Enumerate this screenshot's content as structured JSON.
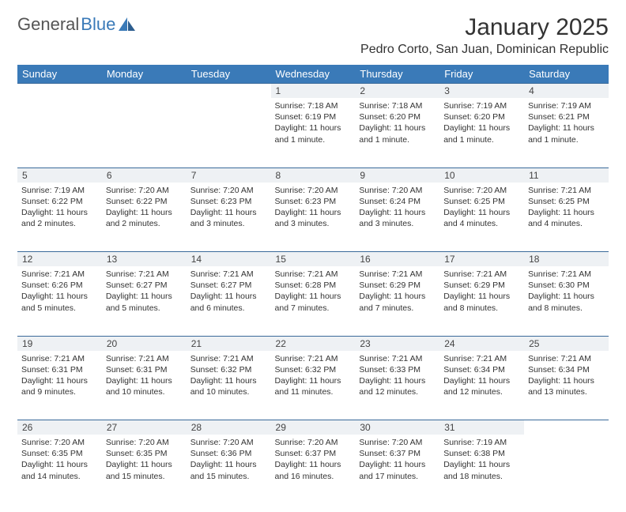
{
  "brand": {
    "part1": "General",
    "part2": "Blue"
  },
  "title": "January 2025",
  "location": "Pedro Corto, San Juan, Dominican Republic",
  "colors": {
    "header_bg": "#3a7ab8",
    "header_text": "#ffffff",
    "daynum_bg": "#eef1f4",
    "border": "#3a6a9a",
    "text": "#333333",
    "brand_gray": "#555555",
    "brand_blue": "#3a7ab8"
  },
  "weekdays": [
    "Sunday",
    "Monday",
    "Tuesday",
    "Wednesday",
    "Thursday",
    "Friday",
    "Saturday"
  ],
  "weeks": [
    {
      "nums": [
        "",
        "",
        "",
        "1",
        "2",
        "3",
        "4"
      ],
      "cells": [
        null,
        null,
        null,
        {
          "sunrise": "Sunrise: 7:18 AM",
          "sunset": "Sunset: 6:19 PM",
          "day1": "Daylight: 11 hours",
          "day2": "and 1 minute."
        },
        {
          "sunrise": "Sunrise: 7:18 AM",
          "sunset": "Sunset: 6:20 PM",
          "day1": "Daylight: 11 hours",
          "day2": "and 1 minute."
        },
        {
          "sunrise": "Sunrise: 7:19 AM",
          "sunset": "Sunset: 6:20 PM",
          "day1": "Daylight: 11 hours",
          "day2": "and 1 minute."
        },
        {
          "sunrise": "Sunrise: 7:19 AM",
          "sunset": "Sunset: 6:21 PM",
          "day1": "Daylight: 11 hours",
          "day2": "and 1 minute."
        }
      ]
    },
    {
      "nums": [
        "5",
        "6",
        "7",
        "8",
        "9",
        "10",
        "11"
      ],
      "cells": [
        {
          "sunrise": "Sunrise: 7:19 AM",
          "sunset": "Sunset: 6:22 PM",
          "day1": "Daylight: 11 hours",
          "day2": "and 2 minutes."
        },
        {
          "sunrise": "Sunrise: 7:20 AM",
          "sunset": "Sunset: 6:22 PM",
          "day1": "Daylight: 11 hours",
          "day2": "and 2 minutes."
        },
        {
          "sunrise": "Sunrise: 7:20 AM",
          "sunset": "Sunset: 6:23 PM",
          "day1": "Daylight: 11 hours",
          "day2": "and 3 minutes."
        },
        {
          "sunrise": "Sunrise: 7:20 AM",
          "sunset": "Sunset: 6:23 PM",
          "day1": "Daylight: 11 hours",
          "day2": "and 3 minutes."
        },
        {
          "sunrise": "Sunrise: 7:20 AM",
          "sunset": "Sunset: 6:24 PM",
          "day1": "Daylight: 11 hours",
          "day2": "and 3 minutes."
        },
        {
          "sunrise": "Sunrise: 7:20 AM",
          "sunset": "Sunset: 6:25 PM",
          "day1": "Daylight: 11 hours",
          "day2": "and 4 minutes."
        },
        {
          "sunrise": "Sunrise: 7:21 AM",
          "sunset": "Sunset: 6:25 PM",
          "day1": "Daylight: 11 hours",
          "day2": "and 4 minutes."
        }
      ]
    },
    {
      "nums": [
        "12",
        "13",
        "14",
        "15",
        "16",
        "17",
        "18"
      ],
      "cells": [
        {
          "sunrise": "Sunrise: 7:21 AM",
          "sunset": "Sunset: 6:26 PM",
          "day1": "Daylight: 11 hours",
          "day2": "and 5 minutes."
        },
        {
          "sunrise": "Sunrise: 7:21 AM",
          "sunset": "Sunset: 6:27 PM",
          "day1": "Daylight: 11 hours",
          "day2": "and 5 minutes."
        },
        {
          "sunrise": "Sunrise: 7:21 AM",
          "sunset": "Sunset: 6:27 PM",
          "day1": "Daylight: 11 hours",
          "day2": "and 6 minutes."
        },
        {
          "sunrise": "Sunrise: 7:21 AM",
          "sunset": "Sunset: 6:28 PM",
          "day1": "Daylight: 11 hours",
          "day2": "and 7 minutes."
        },
        {
          "sunrise": "Sunrise: 7:21 AM",
          "sunset": "Sunset: 6:29 PM",
          "day1": "Daylight: 11 hours",
          "day2": "and 7 minutes."
        },
        {
          "sunrise": "Sunrise: 7:21 AM",
          "sunset": "Sunset: 6:29 PM",
          "day1": "Daylight: 11 hours",
          "day2": "and 8 minutes."
        },
        {
          "sunrise": "Sunrise: 7:21 AM",
          "sunset": "Sunset: 6:30 PM",
          "day1": "Daylight: 11 hours",
          "day2": "and 8 minutes."
        }
      ]
    },
    {
      "nums": [
        "19",
        "20",
        "21",
        "22",
        "23",
        "24",
        "25"
      ],
      "cells": [
        {
          "sunrise": "Sunrise: 7:21 AM",
          "sunset": "Sunset: 6:31 PM",
          "day1": "Daylight: 11 hours",
          "day2": "and 9 minutes."
        },
        {
          "sunrise": "Sunrise: 7:21 AM",
          "sunset": "Sunset: 6:31 PM",
          "day1": "Daylight: 11 hours",
          "day2": "and 10 minutes."
        },
        {
          "sunrise": "Sunrise: 7:21 AM",
          "sunset": "Sunset: 6:32 PM",
          "day1": "Daylight: 11 hours",
          "day2": "and 10 minutes."
        },
        {
          "sunrise": "Sunrise: 7:21 AM",
          "sunset": "Sunset: 6:32 PM",
          "day1": "Daylight: 11 hours",
          "day2": "and 11 minutes."
        },
        {
          "sunrise": "Sunrise: 7:21 AM",
          "sunset": "Sunset: 6:33 PM",
          "day1": "Daylight: 11 hours",
          "day2": "and 12 minutes."
        },
        {
          "sunrise": "Sunrise: 7:21 AM",
          "sunset": "Sunset: 6:34 PM",
          "day1": "Daylight: 11 hours",
          "day2": "and 12 minutes."
        },
        {
          "sunrise": "Sunrise: 7:21 AM",
          "sunset": "Sunset: 6:34 PM",
          "day1": "Daylight: 11 hours",
          "day2": "and 13 minutes."
        }
      ]
    },
    {
      "nums": [
        "26",
        "27",
        "28",
        "29",
        "30",
        "31",
        ""
      ],
      "cells": [
        {
          "sunrise": "Sunrise: 7:20 AM",
          "sunset": "Sunset: 6:35 PM",
          "day1": "Daylight: 11 hours",
          "day2": "and 14 minutes."
        },
        {
          "sunrise": "Sunrise: 7:20 AM",
          "sunset": "Sunset: 6:35 PM",
          "day1": "Daylight: 11 hours",
          "day2": "and 15 minutes."
        },
        {
          "sunrise": "Sunrise: 7:20 AM",
          "sunset": "Sunset: 6:36 PM",
          "day1": "Daylight: 11 hours",
          "day2": "and 15 minutes."
        },
        {
          "sunrise": "Sunrise: 7:20 AM",
          "sunset": "Sunset: 6:37 PM",
          "day1": "Daylight: 11 hours",
          "day2": "and 16 minutes."
        },
        {
          "sunrise": "Sunrise: 7:20 AM",
          "sunset": "Sunset: 6:37 PM",
          "day1": "Daylight: 11 hours",
          "day2": "and 17 minutes."
        },
        {
          "sunrise": "Sunrise: 7:19 AM",
          "sunset": "Sunset: 6:38 PM",
          "day1": "Daylight: 11 hours",
          "day2": "and 18 minutes."
        },
        null
      ]
    }
  ]
}
